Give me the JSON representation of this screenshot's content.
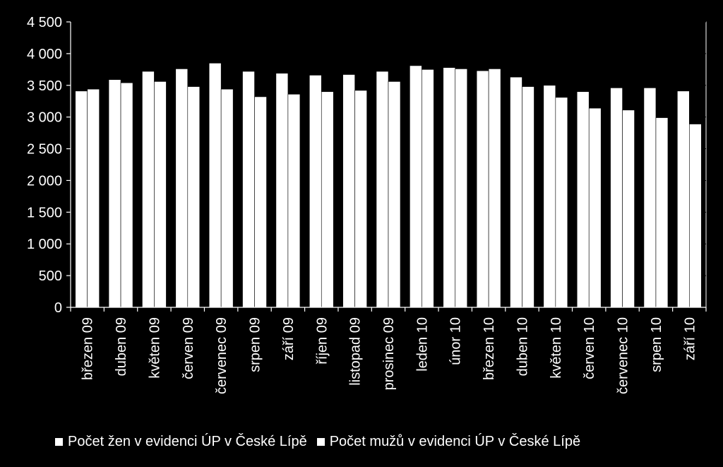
{
  "chart_data": {
    "type": "bar",
    "categories": [
      "březen 09",
      "duben 09",
      "květen 09",
      "červen 09",
      "červenec 09",
      "srpen 09",
      "září 09",
      "říjen 09",
      "listopad 09",
      "prosinec 09",
      "leden 10",
      "únor 10",
      "březen 10",
      "duben 10",
      "květen 10",
      "červen 10",
      "červenec 10",
      "srpen 10",
      "září 10"
    ],
    "series": [
      {
        "name": "Počet žen v evidenci ÚP v České Lípě",
        "color": "#ffffff",
        "values": [
          3410,
          3590,
          3720,
          3760,
          3850,
          3720,
          3690,
          3660,
          3670,
          3720,
          3810,
          3780,
          3730,
          3630,
          3500,
          3400,
          3460,
          3460,
          3410
        ]
      },
      {
        "name": "Počet mužů v evidenci ÚP v České Lípě",
        "color": "#ffffff",
        "values": [
          3440,
          3540,
          3560,
          3480,
          3440,
          3320,
          3360,
          3400,
          3420,
          3560,
          3750,
          3760,
          3760,
          3480,
          3310,
          3140,
          3110,
          2990,
          2890
        ]
      }
    ],
    "ylim": [
      0,
      4500
    ],
    "yticks": [
      0,
      500,
      1000,
      1500,
      2000,
      2500,
      3000,
      3500,
      4000,
      4500
    ],
    "ytick_labels": [
      "0",
      "500",
      "1 000",
      "1 500",
      "2 000",
      "2 500",
      "3 000",
      "3 500",
      "4 000",
      "4 500"
    ],
    "grid": true,
    "legend_position": "bottom",
    "background": "#000000",
    "foreground": "#ffffff",
    "gridline_color": "#000000"
  }
}
